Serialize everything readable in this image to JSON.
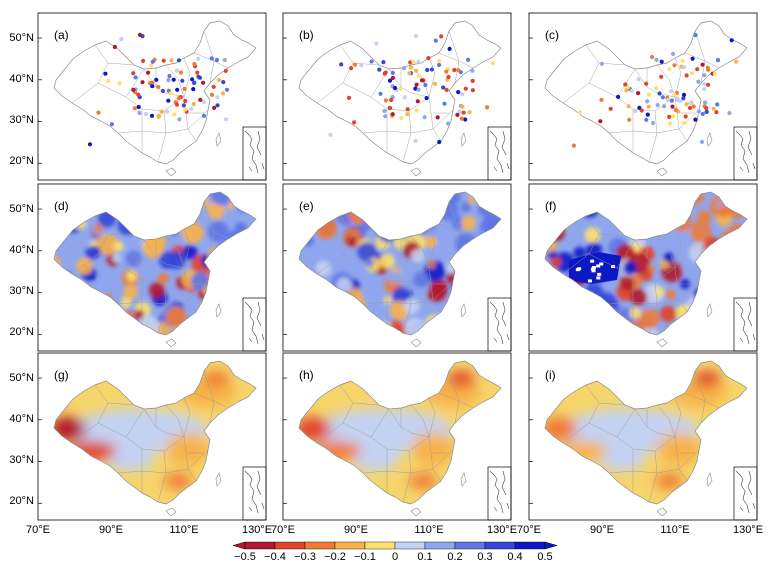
{
  "panels": [
    {
      "label": "(a)",
      "type": "stations",
      "variant": 1
    },
    {
      "label": "(b)",
      "type": "stations",
      "variant": 2
    },
    {
      "label": "(c)",
      "type": "stations",
      "variant": 3
    },
    {
      "label": "(d)",
      "type": "gridded",
      "variant": 1
    },
    {
      "label": "(e)",
      "type": "gridded",
      "variant": 2
    },
    {
      "label": "(f)",
      "type": "gridded",
      "variant": 3
    },
    {
      "label": "(g)",
      "type": "smooth",
      "variant": 1
    },
    {
      "label": "(h)",
      "type": "smooth",
      "variant": 2
    },
    {
      "label": "(i)",
      "type": "smooth",
      "variant": 3
    }
  ],
  "lat_ticks": [
    "50°N",
    "40°N",
    "30°N",
    "20°N"
  ],
  "lon_ticks": [
    "70°E",
    "90°E",
    "110°E",
    "130°E"
  ],
  "colorbar": {
    "labels": [
      "−0.5",
      "−0.4",
      "−0.3",
      "−0.2",
      "−0.1",
      "0",
      "0.1",
      "0.2",
      "0.3",
      "0.4",
      "0.5"
    ],
    "colors": [
      "#b2182b",
      "#e0442a",
      "#f07a35",
      "#f8b24a",
      "#fce16e",
      "#c3d2f2",
      "#8fa6ee",
      "#5e76e6",
      "#3546d8",
      "#0c18c4"
    ]
  }
}
